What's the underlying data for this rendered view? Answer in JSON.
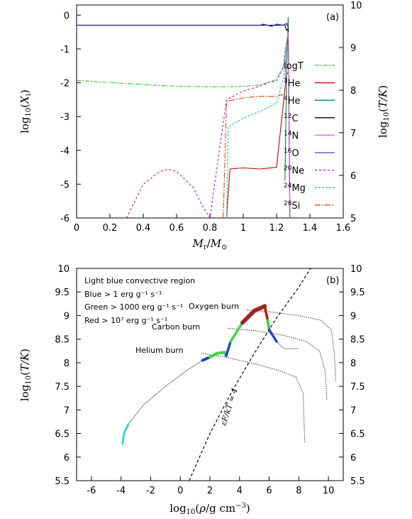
{
  "chart_data": [
    {
      "type": "line",
      "panel_label": "(a)",
      "xlabel": "M_r/M_⊙",
      "ylabel": "log10(X_i)",
      "y2label": "log10(T/K)",
      "xlim": [
        0,
        1.6
      ],
      "ylim": [
        -6,
        0.3
      ],
      "y2lim": [
        5,
        10
      ],
      "x_ticks": [
        "0",
        "0.2",
        "0.4",
        "0.6",
        "0.8",
        "1",
        "1.2",
        "1.4",
        "1.6"
      ],
      "y_ticks": [
        "0",
        "-1",
        "-2",
        "-3",
        "-4",
        "-5",
        "-6"
      ],
      "y2_ticks": [
        "10",
        "9",
        "8",
        "7",
        "6",
        "5"
      ],
      "legend_position": "right",
      "series": [
        {
          "name": "logT",
          "color": "#22cc22",
          "dash": "6,2,2,2",
          "axis": "y2",
          "x": [
            0,
            0.2,
            0.4,
            0.6,
            0.8,
            0.9,
            1.0,
            1.1,
            1.2,
            1.24,
            1.26,
            1.27
          ],
          "y": [
            8.23,
            8.18,
            8.13,
            8.09,
            8.08,
            8.08,
            8.09,
            8.12,
            8.25,
            8.55,
            9.1,
            9.2
          ]
        },
        {
          "name": "3He",
          "color": "#cc0000",
          "dash": "",
          "x": [
            0.9,
            0.92,
            1.0,
            1.1,
            1.2,
            1.26,
            1.27
          ],
          "y": [
            -6,
            -4.55,
            -4.52,
            -4.55,
            -4.5,
            -1.75,
            -1.7
          ]
        },
        {
          "name": "4He",
          "color": "#008844",
          "dash": "",
          "x": [
            1.25,
            1.26,
            1.27,
            1.28
          ],
          "y": [
            -4.9,
            -1.8,
            -0.05,
            -6
          ]
        },
        {
          "name": "12C",
          "color": "#000000",
          "dash": "",
          "x": [
            0,
            1.25,
            1.26,
            1.27,
            1.28
          ],
          "y": [
            -0.3,
            -0.3,
            -0.45,
            -0.4,
            -6
          ]
        },
        {
          "name": "14N",
          "color": "#cc66cc",
          "dash": "",
          "x": [
            1.25,
            1.26,
            1.27,
            1.28
          ],
          "y": [
            -2,
            -0.8,
            -0.5,
            -6
          ]
        },
        {
          "name": "16O",
          "color": "#4444cc",
          "dash": "",
          "x": [
            0,
            0.9,
            1.0,
            1.1,
            1.12,
            1.17,
            1.2,
            1.24,
            1.26,
            1.27
          ],
          "y": [
            -0.3,
            -0.3,
            -0.3,
            -0.3,
            -0.27,
            -0.33,
            -0.27,
            -0.3,
            -0.25,
            -0.35
          ]
        },
        {
          "name": "20Ne",
          "color": "#dd00dd",
          "dash": "3,3",
          "x": [
            0.3,
            0.4,
            0.5,
            0.55,
            0.6,
            0.7,
            0.75,
            0.8,
            0.9,
            1.0,
            1.1,
            1.15,
            1.2,
            1.24,
            1.26
          ],
          "y": [
            -6,
            -5.0,
            -4.62,
            -4.56,
            -4.62,
            -5.1,
            -5.6,
            -6,
            -2.5,
            -2.25,
            -2.1,
            -2.0,
            -1.95,
            -1.55,
            -0.8
          ]
        },
        {
          "name": "24Mg",
          "color": "#00cccc",
          "dash": "3,2",
          "x": [
            0.9,
            0.91,
            1.0,
            1.1,
            1.2,
            1.24,
            1.26
          ],
          "y": [
            -6,
            -3.3,
            -3.05,
            -2.85,
            -2.6,
            -1.9,
            -1.0
          ]
        },
        {
          "name": "28Si",
          "color": "#ee4400",
          "dash": "8,2,2,2",
          "x": [
            0.88,
            0.9,
            1.0,
            1.1,
            1.2,
            1.24
          ],
          "y": [
            -6,
            -2.55,
            -2.45,
            -2.4,
            -2.4,
            -2.35
          ]
        }
      ]
    },
    {
      "type": "line",
      "panel_label": "(b)",
      "xlabel": "log10(ρ/g cm^-3)",
      "ylabel": "log10(T/K)",
      "xlim": [
        -7,
        11
      ],
      "ylim": [
        5.5,
        10
      ],
      "x_ticks": [
        "-6",
        "-4",
        "-2",
        "0",
        "2",
        "4",
        "6",
        "8",
        "10"
      ],
      "y_ticks": [
        "10",
        "9.5",
        "9",
        "8.5",
        "8",
        "7.5",
        "7",
        "6.5",
        "6",
        "5.5"
      ],
      "annotations": {
        "convective": "Light blue convective region",
        "blue": "Blue > 1 erg g⁻¹ s⁻¹",
        "green": "Green > 1000 erg g⁻¹ s⁻¹",
        "red": "Red > 10⁷ erg g⁻¹ s⁻¹",
        "oxygen": "Oxygen burn",
        "carbon": "Carbon burn",
        "helium": "Helium burn",
        "degeneracy": "εF/kT ≈ 4"
      },
      "track": {
        "x": [
          -3.9,
          -3.8,
          -3.5,
          -2.5,
          -1,
          0.5,
          1.5,
          2.0,
          2.5,
          3.0,
          3.1,
          3.2,
          3.4,
          4.2,
          5.0,
          5.7,
          5.9,
          6.0,
          6.2,
          6.5,
          7.0,
          8.0
        ],
        "y": [
          6.28,
          6.5,
          6.7,
          7.1,
          7.5,
          7.85,
          8.05,
          8.12,
          8.2,
          8.22,
          8.15,
          8.25,
          8.45,
          8.85,
          9.1,
          9.2,
          8.9,
          8.7,
          8.6,
          8.45,
          8.3,
          8.3
        ]
      },
      "burning_lines": [
        {
          "name": "Oxygen burn",
          "x": [
            4.5,
            6,
            8,
            9.5,
            10.2,
            10.4,
            10.5
          ],
          "y": [
            9.12,
            9.08,
            9.0,
            8.9,
            8.7,
            8.2,
            7.6
          ]
        },
        {
          "name": "Carbon burn",
          "x": [
            3.2,
            5,
            7,
            8.5,
            9.4,
            9.8,
            9.9
          ],
          "y": [
            8.73,
            8.68,
            8.58,
            8.45,
            8.25,
            7.8,
            7.2
          ]
        },
        {
          "name": "Helium burn",
          "x": [
            1.4,
            3,
            5,
            6.5,
            7.8,
            8.3,
            8.4
          ],
          "y": [
            8.2,
            8.12,
            7.98,
            7.85,
            7.7,
            7.35,
            6.3
          ]
        }
      ],
      "degeneracy_line": {
        "x": [
          0.6,
          2,
          3.5,
          5,
          6.5,
          8,
          8.8
        ],
        "y": [
          5.5,
          6.5,
          7.4,
          8.2,
          8.95,
          9.6,
          10
        ]
      }
    }
  ]
}
